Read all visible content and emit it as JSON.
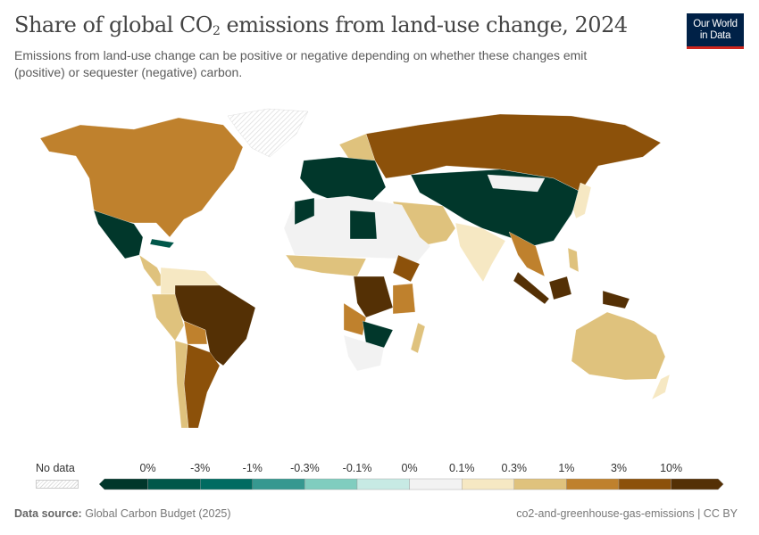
{
  "header": {
    "title_pre": "Share of global CO",
    "title_sub": "2",
    "title_post": " emissions from land-use change, 2024",
    "subtitle": "Emissions from land-use change can be positive or negative depending on whether these changes emit (positive) or sequester (negative) carbon.",
    "logo_line1": "Our World",
    "logo_line2": "in Data"
  },
  "legend": {
    "no_data_label": "No data",
    "labels": [
      "0%",
      "-3%",
      "-1%",
      "-0.3%",
      "-0.1%",
      "0%",
      "0.1%",
      "0.3%",
      "1%",
      "3%",
      "10%"
    ],
    "colors": [
      "#01372b",
      "#01574a",
      "#006b61",
      "#369890",
      "#80cdbf",
      "#c7eae4",
      "#f2f2f2",
      "#f6e8c3",
      "#dfc27d",
      "#bf812d",
      "#8c510a",
      "#543005"
    ],
    "no_data_color": "#e6e6e6"
  },
  "footer": {
    "source_label": "Data source:",
    "source": "Global Carbon Budget (2025)",
    "slug": "co2-and-greenhouse-gas-emissions | CC BY"
  }
}
